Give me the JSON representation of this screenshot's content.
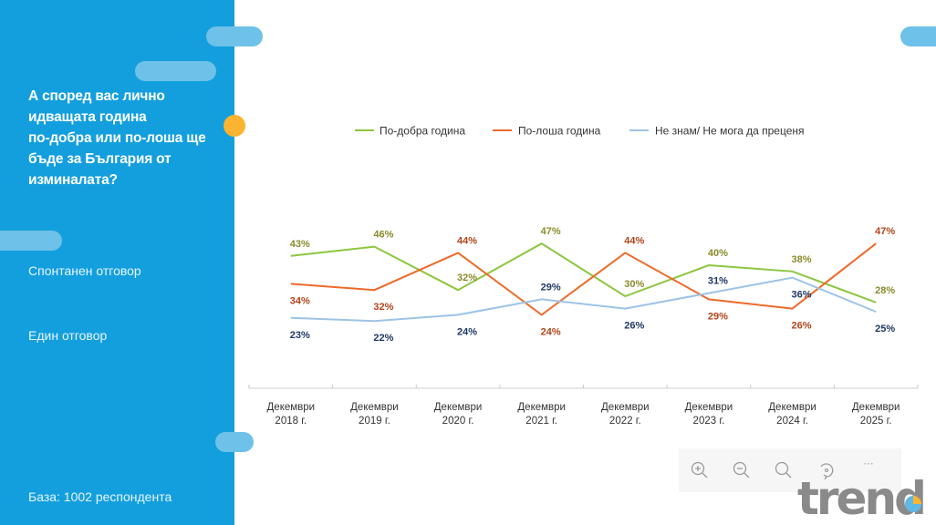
{
  "sidebar": {
    "question": "А според вас лично идващата година по-добра или по-лоша ще бъде за България от изминалата?",
    "question_lines": [
      "А според вас лично",
      "идващата година",
      "по-добра или по-лоша ще",
      "бъде за България от",
      "изминалата?"
    ],
    "note1": "Спонтанен отговор",
    "note2": "Един отговор",
    "base": "База:  1002 респондента"
  },
  "colors": {
    "sidebar_bg": "#139fdd",
    "pill": "#6ec1e8",
    "accent_dot": "#fbb430",
    "better_line": "#8cc63f",
    "worse_line": "#ed6a2a",
    "dunno_line": "#9dc3e6",
    "better_label": "#8a8a2a",
    "worse_label": "#b2441a",
    "dunno_label": "#1f3864"
  },
  "toolbar": {
    "icons": [
      "zoom-in-icon",
      "zoom-out-icon",
      "search-icon",
      "reset-icon",
      "more-icon"
    ],
    "more_label": "···"
  },
  "logo": {
    "text": "trend"
  },
  "chart_data": {
    "type": "line",
    "title": "",
    "xlabel": "",
    "ylabel": "",
    "ylim": [
      0,
      50
    ],
    "grid": false,
    "legend_position": "top",
    "categories": [
      [
        "Декември",
        "2018 г."
      ],
      [
        "Декември",
        "2019 г."
      ],
      [
        "Декември",
        "2020 г."
      ],
      [
        "Декември",
        "2021 г."
      ],
      [
        "Декември",
        "2022 г."
      ],
      [
        "Декември",
        "2023 г."
      ],
      [
        "Декември",
        "2024 г."
      ],
      [
        "Декември",
        "2025 г."
      ]
    ],
    "series": [
      {
        "name": "По-добра година",
        "key": "better",
        "values": [
          43,
          46,
          32,
          47,
          30,
          40,
          38,
          28
        ],
        "labels": [
          "43%",
          "46%",
          "32%",
          "47%",
          "30%",
          "40%",
          "38%",
          "28%"
        ],
        "label_pos": [
          "above",
          "above",
          "above",
          "above",
          "above",
          "above",
          "above",
          "above"
        ]
      },
      {
        "name": "По-лоша година",
        "key": "worse",
        "values": [
          34,
          32,
          44,
          24,
          44,
          29,
          26,
          47
        ],
        "labels": [
          "34%",
          "32%",
          "44%",
          "24%",
          "44%",
          "29%",
          "26%",
          "47%"
        ],
        "label_pos": [
          "below",
          "below",
          "above",
          "below",
          "above",
          "below",
          "below",
          "above"
        ]
      },
      {
        "name": "Не знам/ Не мога да преценя",
        "key": "dunno",
        "values": [
          23,
          22,
          24,
          29,
          26,
          31,
          36,
          25
        ],
        "labels": [
          "23%",
          "22%",
          "24%",
          "29%",
          "26%",
          "31%",
          "36%",
          "25%"
        ],
        "label_pos": [
          "below",
          "below",
          "below",
          "above",
          "below",
          "above",
          "below",
          "below"
        ]
      }
    ]
  }
}
